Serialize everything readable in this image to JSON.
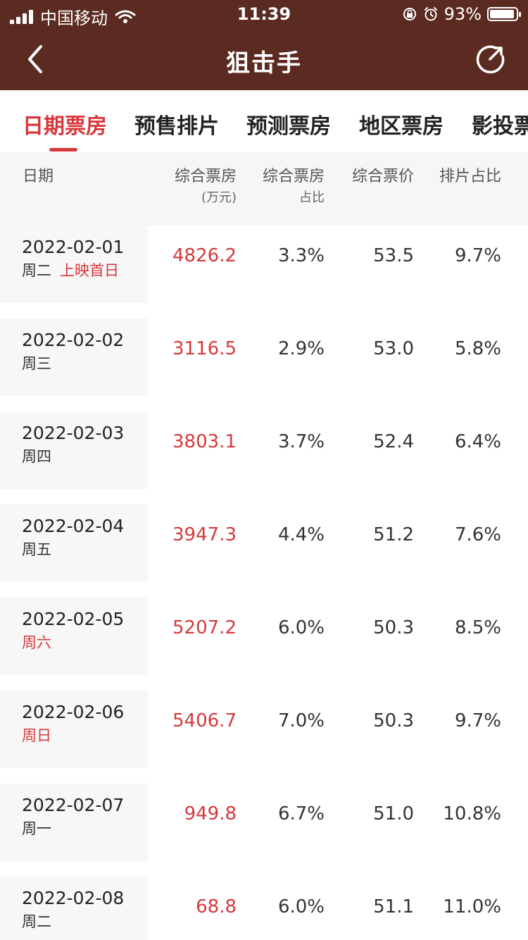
{
  "status_bar": {
    "carrier": "中国移动",
    "time": "11:39",
    "battery": "93%"
  },
  "nav": {
    "title": "狙击手"
  },
  "tabs": [
    {
      "label": "日期票房",
      "active": true
    },
    {
      "label": "预售排片",
      "active": false
    },
    {
      "label": "预测票房",
      "active": false
    },
    {
      "label": "地区票房",
      "active": false
    },
    {
      "label": "影投票",
      "active": false
    }
  ],
  "table": {
    "headers": {
      "date": "日期",
      "box": "综合票房",
      "box_unit": "(万元)",
      "share": "综合票房",
      "share_sub": "占比",
      "price": "综合票价",
      "schedule": "排片占比"
    },
    "rows": [
      {
        "date": "2022-02-01",
        "weekday": "周二",
        "tag": "上映首日",
        "weekend": false,
        "box": "4826.2",
        "share": "3.3%",
        "price": "53.5",
        "schedule": "9.7%"
      },
      {
        "date": "2022-02-02",
        "weekday": "周三",
        "tag": "",
        "weekend": false,
        "box": "3116.5",
        "share": "2.9%",
        "price": "53.0",
        "schedule": "5.8%"
      },
      {
        "date": "2022-02-03",
        "weekday": "周四",
        "tag": "",
        "weekend": false,
        "box": "3803.1",
        "share": "3.7%",
        "price": "52.4",
        "schedule": "6.4%"
      },
      {
        "date": "2022-02-04",
        "weekday": "周五",
        "tag": "",
        "weekend": false,
        "box": "3947.3",
        "share": "4.4%",
        "price": "51.2",
        "schedule": "7.6%"
      },
      {
        "date": "2022-02-05",
        "weekday": "周六",
        "tag": "",
        "weekend": true,
        "box": "5207.2",
        "share": "6.0%",
        "price": "50.3",
        "schedule": "8.5%"
      },
      {
        "date": "2022-02-06",
        "weekday": "周日",
        "tag": "",
        "weekend": true,
        "box": "5406.7",
        "share": "7.0%",
        "price": "50.3",
        "schedule": "9.7%"
      },
      {
        "date": "2022-02-07",
        "weekday": "周一",
        "tag": "",
        "weekend": false,
        "box": "949.8",
        "share": "6.7%",
        "price": "51.0",
        "schedule": "10.8%"
      },
      {
        "date": "2022-02-08",
        "weekday": "周二",
        "tag": "",
        "weekend": false,
        "box": "68.8",
        "share": "6.0%",
        "price": "51.1",
        "schedule": "11.0%"
      }
    ]
  },
  "colors": {
    "topbar": "#5b2a20",
    "accent": "#d7383b"
  }
}
